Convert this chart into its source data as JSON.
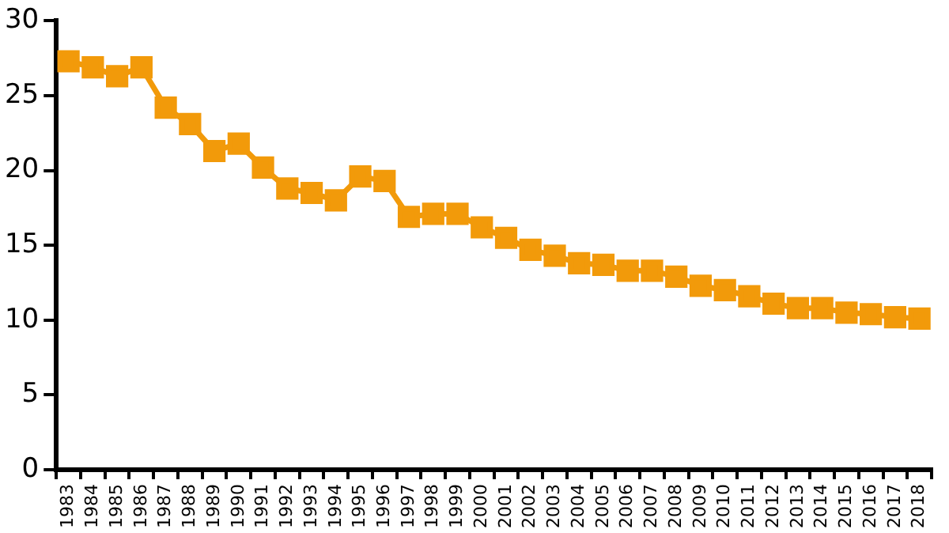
{
  "chart_data": {
    "type": "line",
    "categories": [
      "1983",
      "1984",
      "1985",
      "1986",
      "1987",
      "1988",
      "1989",
      "1990",
      "1991",
      "1992",
      "1993",
      "1994",
      "1995",
      "1996",
      "1997",
      "1998",
      "1999",
      "2000",
      "2001",
      "2002",
      "2003",
      "2004",
      "2005",
      "2006",
      "2007",
      "2008",
      "2009",
      "2010",
      "2011",
      "2012",
      "2013",
      "2014",
      "2015",
      "2016",
      "2017",
      "2018"
    ],
    "series": [
      {
        "color": "#f29a0a",
        "values": [
          27.3,
          26.9,
          26.3,
          26.9,
          24.2,
          23.1,
          21.3,
          21.8,
          20.2,
          18.8,
          18.5,
          18.0,
          19.6,
          19.3,
          16.9,
          17.1,
          17.1,
          16.2,
          15.5,
          14.7,
          14.3,
          13.8,
          13.7,
          13.3,
          13.3,
          12.9,
          12.3,
          12.0,
          11.6,
          11.1,
          10.8,
          10.8,
          10.5,
          10.4,
          10.2,
          10.1
        ]
      }
    ],
    "ylim": [
      0,
      30
    ],
    "yticks": [
      0,
      5,
      10,
      15,
      20,
      25,
      30
    ],
    "grid": false,
    "legend": false,
    "marker": "square",
    "line_style": "solid"
  }
}
